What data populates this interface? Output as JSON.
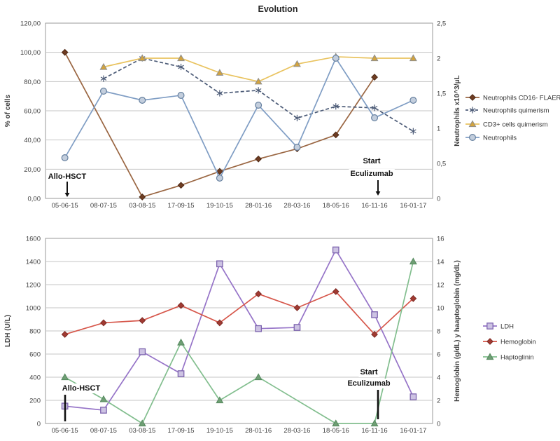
{
  "title": "Evolution",
  "chart_data": [
    {
      "type": "line",
      "panel": "top",
      "categories": [
        "05-06-15",
        "08-07-15",
        "03-08-15",
        "17-09-15",
        "19-10-15",
        "28-01-16",
        "28-03-16",
        "18-05-16",
        "16-11-16",
        "16-01-17"
      ],
      "left_axis": {
        "title": "% of cells",
        "min": 0,
        "max": 120,
        "tick_values": [
          0,
          20,
          40,
          60,
          80,
          100,
          120
        ],
        "tick_labels": [
          "0,00",
          "20,00",
          "40,00",
          "60,00",
          "80,00",
          "100,00",
          "120,00"
        ]
      },
      "right_axis": {
        "title": "Neutrophils x10^3/μL",
        "min": 0,
        "max": 2.5,
        "tick_values": [
          0,
          0.5,
          1,
          1.5,
          2,
          2.5
        ],
        "tick_labels": [
          "0",
          "0,5",
          "1",
          "1,5",
          "2",
          "2,5"
        ]
      },
      "legend_position": "right",
      "grid": true,
      "series": [
        {
          "name": "Neutrophils CD16- FLAER",
          "axis": "left",
          "marker": "diamond",
          "dashed": false,
          "color": "#9A6642",
          "marker_fill": "#6E3C22",
          "marker_stroke": "#4F2A16",
          "values": [
            100,
            null,
            1,
            9,
            18.5,
            27,
            34,
            43.5,
            83,
            null
          ]
        },
        {
          "name": "Neutrophils quimerism",
          "axis": "left",
          "marker": "asterisk",
          "dashed": true,
          "color": "#4C5B77",
          "marker_fill": "#4C5B77",
          "marker_stroke": "#4C5B77",
          "values": [
            null,
            82,
            96,
            90,
            72,
            74,
            55,
            63,
            62,
            46
          ]
        },
        {
          "name": "CD3+ cells quimerism",
          "axis": "left",
          "marker": "triangle",
          "dashed": false,
          "color": "#E9C35F",
          "marker_fill": "#D2A33E",
          "marker_stroke": "#8F8F8F",
          "values": [
            null,
            90,
            96,
            96,
            86,
            80,
            92,
            97,
            96,
            96
          ]
        },
        {
          "name": "Neutrophils",
          "axis": "right",
          "marker": "circle",
          "dashed": false,
          "color": "#7F9DC4",
          "marker_fill": "#C3CEDD",
          "marker_stroke": "#66809F",
          "values": [
            0.58,
            1.53,
            1.4,
            1.47,
            0.29,
            1.33,
            0.73,
            2.0,
            1.15,
            1.4
          ]
        }
      ],
      "annotations": [
        {
          "lines": [
            "Allo-HSCT"
          ]
        },
        {
          "lines": [
            "Start",
            "Eculizumab"
          ]
        }
      ]
    },
    {
      "type": "line",
      "panel": "bottom",
      "categories": [
        "05-06-15",
        "08-07-15",
        "03-08-15",
        "17-09-15",
        "19-10-15",
        "28-01-16",
        "28-03-16",
        "18-05-16",
        "16-11-16",
        "16-01-17"
      ],
      "left_axis": {
        "title": "LDH (U/L)",
        "min": 0,
        "max": 1600,
        "tick_values": [
          0,
          200,
          400,
          600,
          800,
          1000,
          1200,
          1400,
          1600
        ],
        "tick_labels": [
          "0",
          "200",
          "400",
          "600",
          "800",
          "1000",
          "1200",
          "1400",
          "1600"
        ]
      },
      "right_axis": {
        "title": "Hemoglobin (g/dL) y haaptoglobin (mg/dL)",
        "min": 0,
        "max": 16,
        "tick_values": [
          0,
          2,
          4,
          6,
          8,
          10,
          12,
          14,
          16
        ],
        "tick_labels": [
          "0",
          "2",
          "4",
          "6",
          "8",
          "10",
          "12",
          "14",
          "16"
        ]
      },
      "legend_position": "right",
      "grid": true,
      "series": [
        {
          "name": "LDH",
          "axis": "left",
          "marker": "square",
          "dashed": false,
          "color": "#9674C8",
          "marker_fill": "#CDC3E3",
          "marker_stroke": "#7D64AE",
          "values": [
            150,
            115,
            620,
            430,
            1380,
            820,
            830,
            1500,
            940,
            230
          ]
        },
        {
          "name": "Hemoglobin",
          "axis": "right",
          "marker": "diamond",
          "dashed": false,
          "color": "#D6564A",
          "marker_fill": "#A13A32",
          "marker_stroke": "#7E2D27",
          "values": [
            7.7,
            8.7,
            8.9,
            10.2,
            8.7,
            11.2,
            10.0,
            11.4,
            7.7,
            10.8
          ]
        },
        {
          "name": "Haptoglinin",
          "axis": "right",
          "marker": "triangle",
          "dashed": false,
          "color": "#82BE8E",
          "marker_fill": "#6F9F74",
          "marker_stroke": "#54885E",
          "values": [
            4.0,
            2.1,
            0,
            7.0,
            2.0,
            4.0,
            null,
            0,
            0,
            14.0
          ]
        }
      ],
      "annotations": [
        {
          "lines": [
            "Allo-HSCT"
          ]
        },
        {
          "lines": [
            "Start",
            "Eculizumab"
          ]
        }
      ]
    }
  ]
}
